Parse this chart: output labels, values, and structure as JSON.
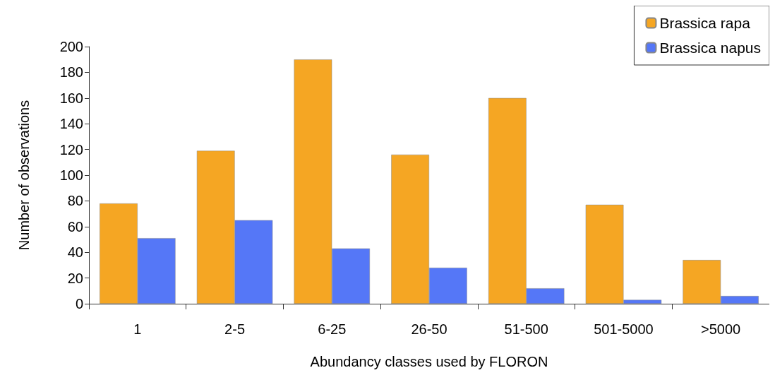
{
  "chart_data": {
    "type": "bar",
    "xlabel": "Abundancy classes used by FLORON",
    "ylabel": "Number of observations",
    "categories": [
      "1",
      "2-5",
      "6-25",
      "26-50",
      "51-500",
      "501-5000",
      ">5000"
    ],
    "series": [
      {
        "name": "Brassica rapa",
        "color": "#f5a623",
        "values": [
          78,
          119,
          190,
          116,
          160,
          77,
          34
        ]
      },
      {
        "name": "Brassica napus",
        "color": "#5577f7",
        "values": [
          51,
          65,
          43,
          28,
          12,
          3,
          6
        ]
      }
    ],
    "ylim": [
      0,
      200
    ],
    "yticks": [
      0,
      20,
      40,
      60,
      80,
      100,
      120,
      140,
      160,
      180,
      200
    ],
    "grid": false,
    "legend": "top right"
  }
}
